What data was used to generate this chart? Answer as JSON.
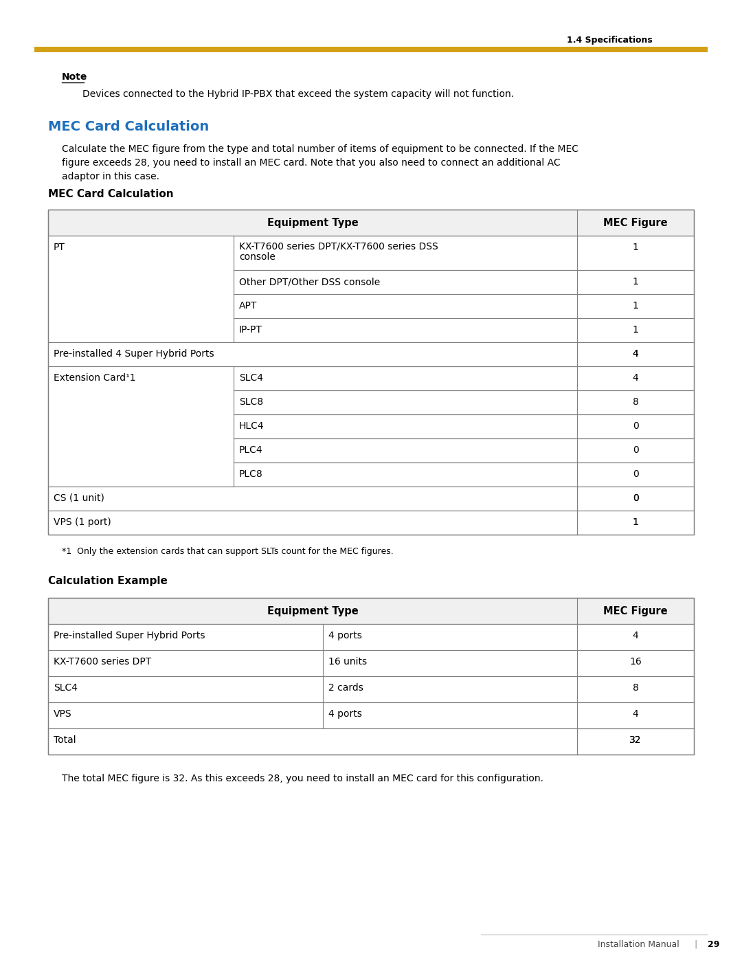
{
  "page_header": "1.4 Specifications",
  "header_line_color": "#D4A017",
  "note_label": "Note",
  "note_text": "Devices connected to the Hybrid IP-PBX that exceed the system capacity will not function.",
  "section_title": "MEC Card Calculation",
  "section_title_color": "#1E6FBB",
  "section_desc": "Calculate the MEC figure from the type and total number of items of equipment to be connected. If the MEC\nfigure exceeds 28, you need to install an MEC card. Note that you also need to connect an additional AC\nadaptor in this case.",
  "table1_heading": "MEC Card Calculation",
  "table1_col_headers": [
    "Equipment Type",
    "MEC Figure"
  ],
  "table1_rows": [
    {
      "col1": "PT",
      "col2": "KX-T7600 series DPT/KX-T7600 series DSS\nconsole",
      "col3": "1"
    },
    {
      "col1": "",
      "col2": "Other DPT/Other DSS console",
      "col3": "1"
    },
    {
      "col1": "",
      "col2": "APT",
      "col3": "1"
    },
    {
      "col1": "",
      "col2": "IP-PT",
      "col3": "1"
    },
    {
      "col1": "Pre-installed 4 Super Hybrid Ports",
      "col2": "",
      "col3": "4"
    },
    {
      "col1": "Extension Card¹1",
      "col2": "SLC4",
      "col3": "4"
    },
    {
      "col1": "",
      "col2": "SLC8",
      "col3": "8"
    },
    {
      "col1": "",
      "col2": "HLC4",
      "col3": "0"
    },
    {
      "col1": "",
      "col2": "PLC4",
      "col3": "0"
    },
    {
      "col1": "",
      "col2": "PLC8",
      "col3": "0"
    },
    {
      "col1": "CS (1 unit)",
      "col2": "",
      "col3": "0"
    },
    {
      "col1": "VPS (1 port)",
      "col2": "",
      "col3": "1"
    }
  ],
  "footnote": "*1  Only the extension cards that can support SLTs count for the MEC figures.",
  "table2_heading": "Calculation Example",
  "table2_col_headers": [
    "Equipment Type",
    "MEC Figure"
  ],
  "table2_rows": [
    {
      "col1": "Pre-installed Super Hybrid Ports",
      "col2": "4 ports",
      "col3": "4"
    },
    {
      "col1": "KX-T7600 series DPT",
      "col2": "16 units",
      "col3": "16"
    },
    {
      "col1": "SLC4",
      "col2": "2 cards",
      "col3": "8"
    },
    {
      "col1": "VPS",
      "col2": "4 ports",
      "col3": "4"
    },
    {
      "col1": "Total",
      "col2": "",
      "col3": "32"
    }
  ],
  "conclusion": "The total MEC figure is 32. As this exceeds 28, you need to install an MEC card for this configuration.",
  "footer_text": "Installation Manual",
  "footer_page": "29",
  "bg_color": "#FFFFFF",
  "text_color": "#000000",
  "table_border_color": "#808080",
  "table_header_bg": "#F0F0F0"
}
